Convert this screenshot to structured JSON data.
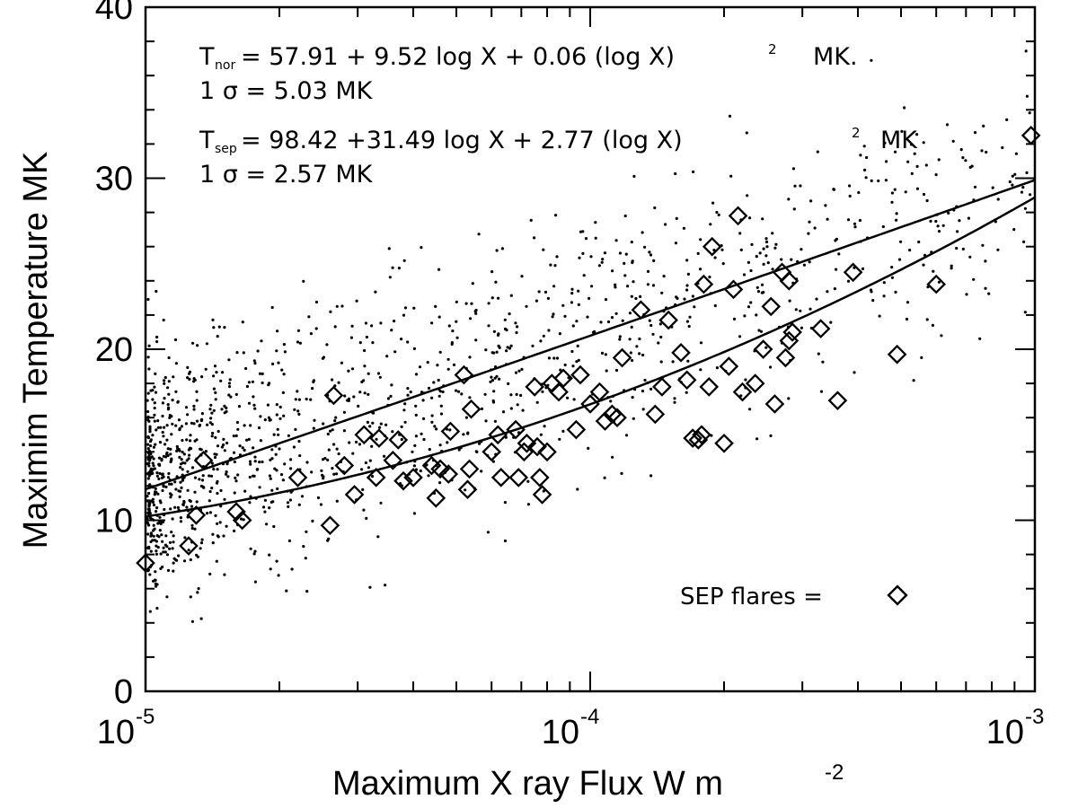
{
  "chart_data": {
    "type": "scatter",
    "xlabel": "Maximum X ray Flux  W m",
    "xlabel_sup": "-2",
    "ylabel": "Maximim Temperature MK",
    "x_scale": "log",
    "xlim": [
      1e-05,
      0.001
    ],
    "ylim": [
      0,
      40
    ],
    "y_ticks": [
      "0",
      "10",
      "20",
      "30",
      "40"
    ],
    "x_ticks": [
      {
        "base": "10",
        "exp": "-5",
        "value": 1e-05
      },
      {
        "base": "10",
        "exp": "-4",
        "value": 0.0001
      },
      {
        "base": "10",
        "exp": "-3",
        "value": 0.001
      }
    ],
    "grid": false,
    "annotations": {
      "eq1_T": "T",
      "eq1_sub": "nor",
      "eq1_rhs": "=   57.91  + 9.52  log X  + 0.06  (log X)",
      "eq1_sup": "2",
      "eq1_unit": "MK.",
      "sigma1": "1  σ  =   5.03  MK",
      "eq2_T": "T",
      "eq2_sub": "sep",
      "eq2_rhs": "=   98.42  +31.49  log X  + 2.77  (log X)",
      "eq2_sup": "2",
      "eq2_unit": "MK",
      "sigma2": "1  σ  =   2.57  MK"
    },
    "legend": {
      "label": "SEP flares  =",
      "marker": "diamond",
      "position": "bottom-right"
    },
    "fits": [
      {
        "name": "nor",
        "coeffs": [
          57.91,
          9.52,
          0.06
        ]
      },
      {
        "name": "sep",
        "coeffs": [
          98.42,
          31.49,
          2.77
        ]
      }
    ],
    "series": [
      {
        "marker": "diamond",
        "points": [
          [
            1e-05,
            7.5
          ],
          [
            1.25e-05,
            8.5
          ],
          [
            1.3e-05,
            10.3
          ],
          [
            1.35e-05,
            13.5
          ],
          [
            1.6e-05,
            10.5
          ],
          [
            1.65e-05,
            10.0
          ],
          [
            2.2e-05,
            12.5
          ],
          [
            2.6e-05,
            9.7
          ],
          [
            2.65e-05,
            17.3
          ],
          [
            2.8e-05,
            13.2
          ],
          [
            2.95e-05,
            11.5
          ],
          [
            3.1e-05,
            15.0
          ],
          [
            3.3e-05,
            12.5
          ],
          [
            3.35e-05,
            14.8
          ],
          [
            3.6e-05,
            13.5
          ],
          [
            3.7e-05,
            14.7
          ],
          [
            3.8e-05,
            12.3
          ],
          [
            4e-05,
            12.5
          ],
          [
            4.4e-05,
            13.2
          ],
          [
            4.5e-05,
            11.3
          ],
          [
            4.6e-05,
            13.0
          ],
          [
            4.8e-05,
            12.7
          ],
          [
            4.85e-05,
            15.2
          ],
          [
            5.2e-05,
            18.5
          ],
          [
            5.3e-05,
            11.8
          ],
          [
            5.35e-05,
            13.0
          ],
          [
            5.4e-05,
            16.5
          ],
          [
            6e-05,
            14.0
          ],
          [
            6.2e-05,
            15.0
          ],
          [
            6.3e-05,
            12.5
          ],
          [
            6.8e-05,
            15.3
          ],
          [
            6.9e-05,
            12.5
          ],
          [
            7.1e-05,
            14.0
          ],
          [
            7.2e-05,
            14.5
          ],
          [
            7.5e-05,
            17.8
          ],
          [
            7.6e-05,
            14.3
          ],
          [
            7.7e-05,
            12.5
          ],
          [
            7.8e-05,
            11.5
          ],
          [
            8e-05,
            14.0
          ],
          [
            8.2e-05,
            18.0
          ],
          [
            8.5e-05,
            17.5
          ],
          [
            8.7e-05,
            18.3
          ],
          [
            9.3e-05,
            15.3
          ],
          [
            9.5e-05,
            18.5
          ],
          [
            0.0001,
            16.8
          ],
          [
            0.000105,
            17.5
          ],
          [
            0.000108,
            15.8
          ],
          [
            0.000112,
            16.2
          ],
          [
            0.000115,
            16.0
          ],
          [
            0.000118,
            19.5
          ],
          [
            0.00013,
            22.3
          ],
          [
            0.00014,
            16.2
          ],
          [
            0.000145,
            17.8
          ],
          [
            0.00015,
            21.7
          ],
          [
            0.00016,
            19.8
          ],
          [
            0.000165,
            18.2
          ],
          [
            0.00017,
            14.8
          ],
          [
            0.000175,
            14.7
          ],
          [
            0.000178,
            15.0
          ],
          [
            0.00018,
            23.8
          ],
          [
            0.000185,
            17.8
          ],
          [
            0.000188,
            26.0
          ],
          [
            0.0002,
            14.5
          ],
          [
            0.000205,
            19.0
          ],
          [
            0.00021,
            23.5
          ],
          [
            0.000215,
            27.8
          ],
          [
            0.00022,
            17.5
          ],
          [
            0.000235,
            18.0
          ],
          [
            0.000245,
            20.0
          ],
          [
            0.000255,
            22.5
          ],
          [
            0.00026,
            16.8
          ],
          [
            0.00027,
            24.5
          ],
          [
            0.000275,
            19.5
          ],
          [
            0.00028,
            20.5
          ],
          [
            0.00028,
            24.0
          ],
          [
            0.000285,
            21.0
          ],
          [
            0.00033,
            21.2
          ],
          [
            0.00036,
            17.0
          ],
          [
            0.00039,
            24.5
          ],
          [
            0.00049,
            19.7
          ],
          [
            0.0006,
            23.8
          ],
          [
            0.00098,
            32.5
          ]
        ]
      },
      {
        "marker": "dot",
        "generated": "true"
      }
    ]
  }
}
